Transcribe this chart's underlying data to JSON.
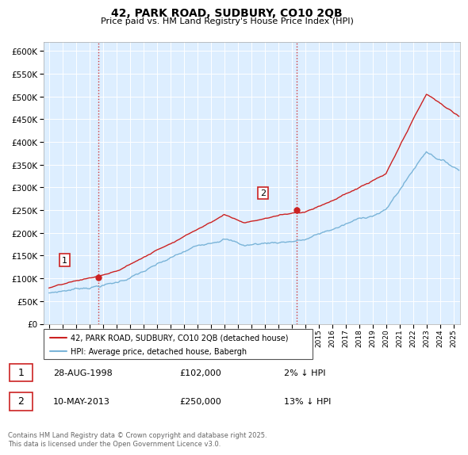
{
  "title": "42, PARK ROAD, SUDBURY, CO10 2QB",
  "subtitle": "Price paid vs. HM Land Registry's House Price Index (HPI)",
  "ylim": [
    0,
    620000
  ],
  "yticks": [
    0,
    50000,
    100000,
    150000,
    200000,
    250000,
    300000,
    350000,
    400000,
    450000,
    500000,
    550000,
    600000
  ],
  "hpi_color": "#7ab4d8",
  "price_color": "#cc2222",
  "vline_color": "#cc2222",
  "sale1_x": 1998.65,
  "sale1_price": 102000,
  "sale2_x": 2013.37,
  "sale2_price": 250000,
  "legend_label1": "42, PARK ROAD, SUDBURY, CO10 2QB (detached house)",
  "legend_label2": "HPI: Average price, detached house, Babergh",
  "table_row1": [
    "1",
    "28-AUG-1998",
    "£102,000",
    "2% ↓ HPI"
  ],
  "table_row2": [
    "2",
    "10-MAY-2013",
    "£250,000",
    "13% ↓ HPI"
  ],
  "footnote": "Contains HM Land Registry data © Crown copyright and database right 2025.\nThis data is licensed under the Open Government Licence v3.0.",
  "background_color": "#ffffff",
  "plot_bg_color": "#ddeeff",
  "grid_color": "#ffffff"
}
